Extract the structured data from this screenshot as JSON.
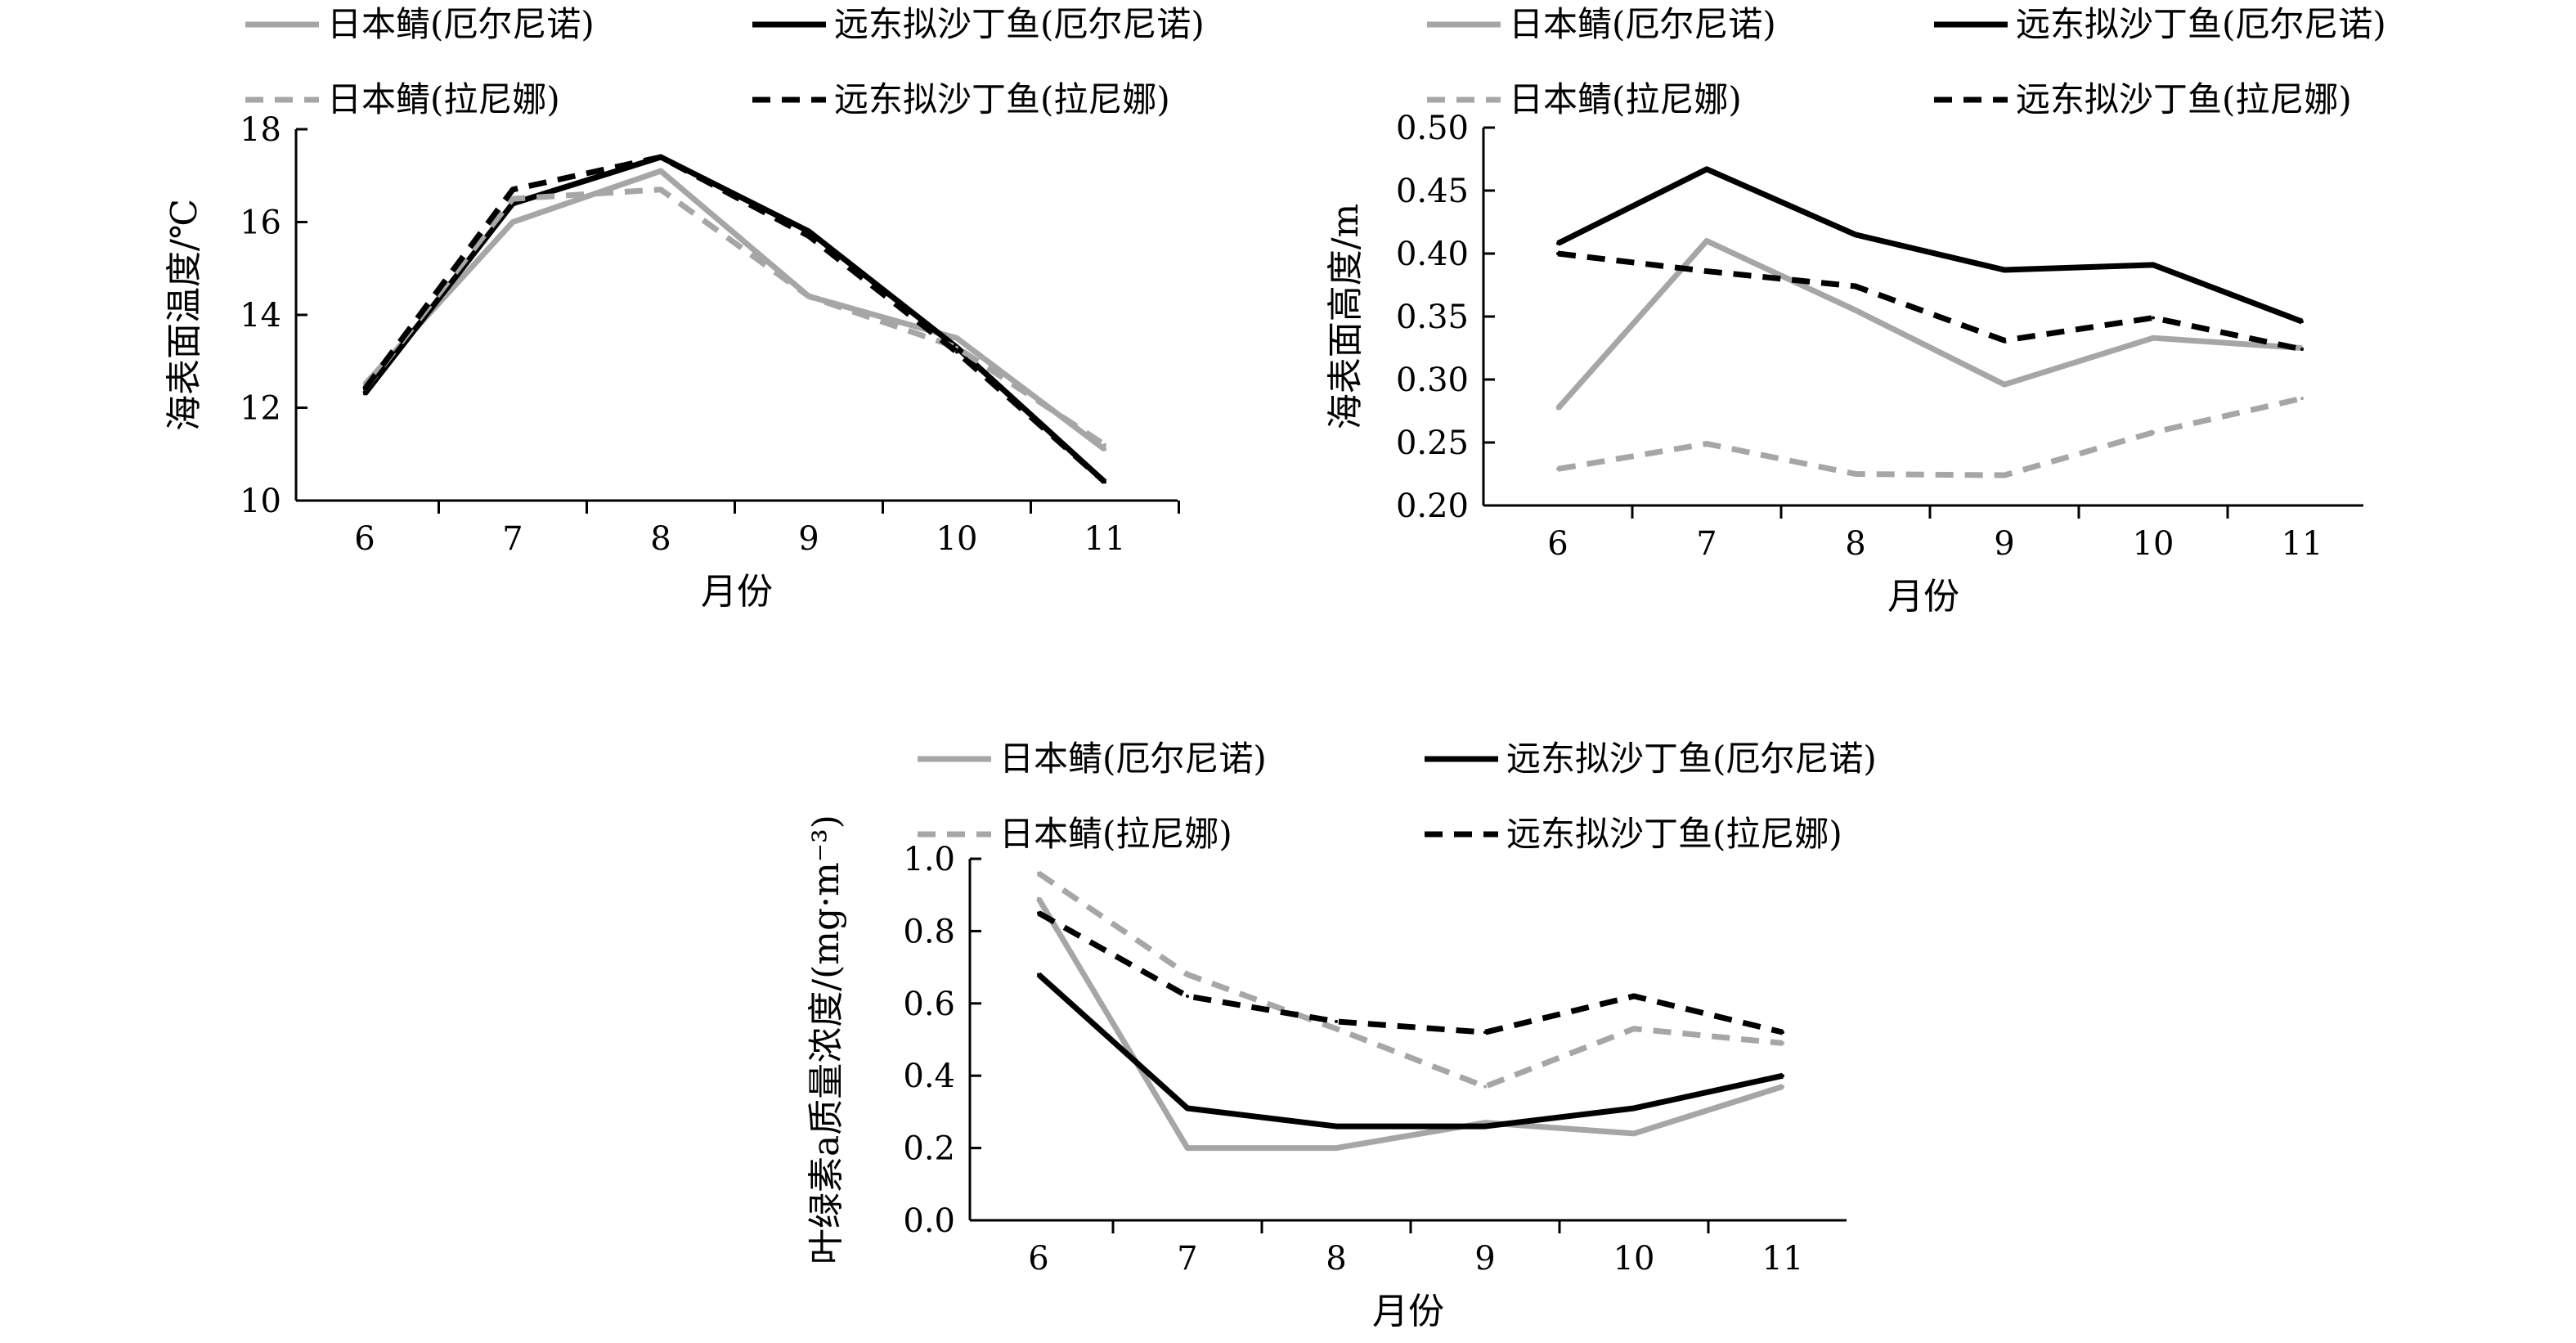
{
  "figure": {
    "legend": {
      "items": [
        {
          "label": "日本鲭(厄尔尼诺)",
          "style": "gray-solid"
        },
        {
          "label": "远东拟沙丁鱼(厄尔尼诺)",
          "style": "black-solid"
        },
        {
          "label": "日本鲭(拉尼娜)",
          "style": "gray-dashed"
        },
        {
          "label": "远东拟沙丁鱼(拉尼娜)",
          "style": "black-dashed"
        }
      ]
    },
    "colors": {
      "gray": "#a6a6a6",
      "black": "#000000"
    }
  },
  "chart_data": [
    {
      "type": "line",
      "xlabel": "月份",
      "ylabel": "海表面温度/℃",
      "x": [
        6,
        7,
        8,
        9,
        10,
        11
      ],
      "ylim": [
        10,
        18
      ],
      "yticks": [
        "10",
        "12",
        "14",
        "16",
        "18"
      ],
      "series": [
        {
          "name": "日本鲭(厄尔尼诺)",
          "style": "gray-solid",
          "values": [
            12.5,
            16.0,
            17.1,
            14.4,
            13.5,
            11.1
          ]
        },
        {
          "name": "远东拟沙丁鱼(厄尔尼诺)",
          "style": "black-solid",
          "values": [
            12.3,
            16.4,
            17.4,
            15.8,
            13.3,
            10.4
          ]
        },
        {
          "name": "日本鲭(拉尼娜)",
          "style": "gray-dashed",
          "values": [
            12.4,
            16.5,
            16.7,
            14.4,
            13.3,
            11.2
          ]
        },
        {
          "name": "远东拟沙丁鱼(拉尼娜)",
          "style": "black-dashed",
          "values": [
            12.4,
            16.7,
            17.4,
            15.7,
            13.2,
            10.4
          ]
        }
      ]
    },
    {
      "type": "line",
      "xlabel": "月份",
      "ylabel": "海表面高度/m",
      "x": [
        6,
        7,
        8,
        9,
        10,
        11
      ],
      "ylim": [
        0.2,
        0.5
      ],
      "yticks": [
        "0.20",
        "0.25",
        "0.30",
        "0.35",
        "0.40",
        "0.45",
        "0.50"
      ],
      "series": [
        {
          "name": "日本鲭(厄尔尼诺)",
          "style": "gray-solid",
          "values": [
            0.277,
            0.41,
            0.355,
            0.296,
            0.333,
            0.325
          ]
        },
        {
          "name": "远东拟沙丁鱼(厄尔尼诺)",
          "style": "black-solid",
          "values": [
            0.408,
            0.467,
            0.415,
            0.387,
            0.391,
            0.346
          ]
        },
        {
          "name": "日本鲭(拉尼娜)",
          "style": "gray-dashed",
          "values": [
            0.229,
            0.249,
            0.225,
            0.224,
            0.258,
            0.285
          ]
        },
        {
          "name": "远东拟沙丁鱼(拉尼娜)",
          "style": "black-dashed",
          "values": [
            0.4,
            0.386,
            0.374,
            0.331,
            0.349,
            0.324
          ]
        }
      ]
    },
    {
      "type": "line",
      "xlabel": "月份",
      "ylabel": "叶绿素a质量浓度/(mg·m⁻³)",
      "x": [
        6,
        7,
        8,
        9,
        10,
        11
      ],
      "ylim": [
        0,
        1
      ],
      "yticks": [
        "0.0",
        "0.2",
        "0.4",
        "0.6",
        "0.8",
        "1.0"
      ],
      "series": [
        {
          "name": "日本鲭(厄尔尼诺)",
          "style": "gray-solid",
          "values": [
            0.89,
            0.2,
            0.2,
            0.27,
            0.24,
            0.37
          ]
        },
        {
          "name": "远东拟沙丁鱼(厄尔尼诺)",
          "style": "black-solid",
          "values": [
            0.68,
            0.31,
            0.26,
            0.26,
            0.31,
            0.4
          ]
        },
        {
          "name": "日本鲭(拉尼娜)",
          "style": "gray-dashed",
          "values": [
            0.96,
            0.68,
            0.53,
            0.37,
            0.53,
            0.49
          ]
        },
        {
          "name": "远东拟沙丁鱼(拉尼娜)",
          "style": "black-dashed",
          "values": [
            0.85,
            0.62,
            0.55,
            0.52,
            0.62,
            0.52
          ]
        }
      ]
    }
  ]
}
